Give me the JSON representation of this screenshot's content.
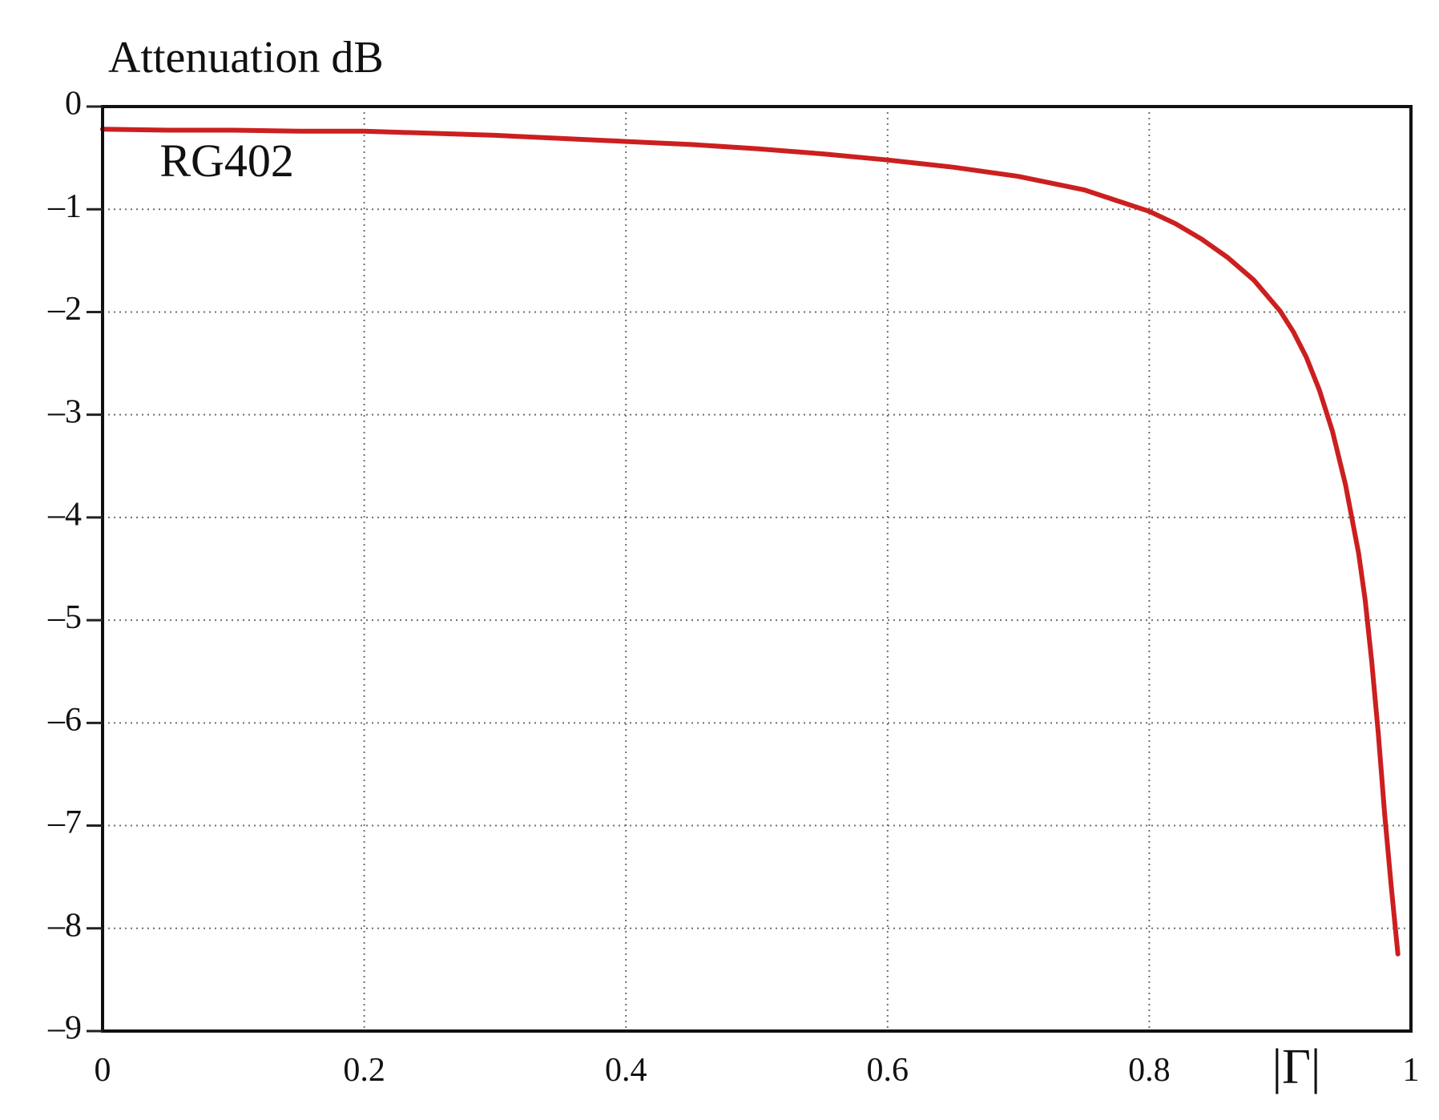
{
  "chart_data": {
    "type": "line",
    "title": "",
    "xlabel": "|Γ|",
    "ylabel": "Attenuation dB",
    "xlim": [
      0,
      1
    ],
    "ylim": [
      -9,
      0
    ],
    "xticks": [
      0,
      0.2,
      0.4,
      0.6,
      0.8,
      1
    ],
    "xtick_labels": [
      "0",
      "0.2",
      "0.4",
      "0.6",
      "0.8",
      "1"
    ],
    "yticks": [
      0,
      -1,
      -2,
      -3,
      -4,
      -5,
      -6,
      -7,
      -8,
      -9
    ],
    "ytick_labels": [
      "0",
      "–1",
      "–2",
      "–3",
      "–4",
      "–5",
      "–6",
      "–7",
      "–8",
      "–9"
    ],
    "grid": true,
    "annotations": [
      {
        "text": "RG402",
        "x": 0.04,
        "y": -0.6
      }
    ],
    "series": [
      {
        "name": "RG402",
        "color": "#cc1f1f",
        "x": [
          0,
          0.05,
          0.1,
          0.15,
          0.2,
          0.25,
          0.3,
          0.35,
          0.4,
          0.45,
          0.5,
          0.55,
          0.6,
          0.65,
          0.7,
          0.75,
          0.8,
          0.82,
          0.84,
          0.86,
          0.88,
          0.9,
          0.91,
          0.92,
          0.93,
          0.94,
          0.95,
          0.96,
          0.965,
          0.97,
          0.975,
          0.98,
          0.985,
          0.99
        ],
        "y": [
          -0.22,
          -0.23,
          -0.23,
          -0.24,
          -0.24,
          -0.26,
          -0.28,
          -0.31,
          -0.34,
          -0.37,
          -0.41,
          -0.46,
          -0.52,
          -0.59,
          -0.68,
          -0.81,
          -1.02,
          -1.14,
          -1.29,
          -1.47,
          -1.69,
          -1.99,
          -2.19,
          -2.44,
          -2.76,
          -3.16,
          -3.68,
          -4.35,
          -4.8,
          -5.4,
          -6.1,
          -6.9,
          -7.6,
          -8.25
        ]
      }
    ]
  }
}
